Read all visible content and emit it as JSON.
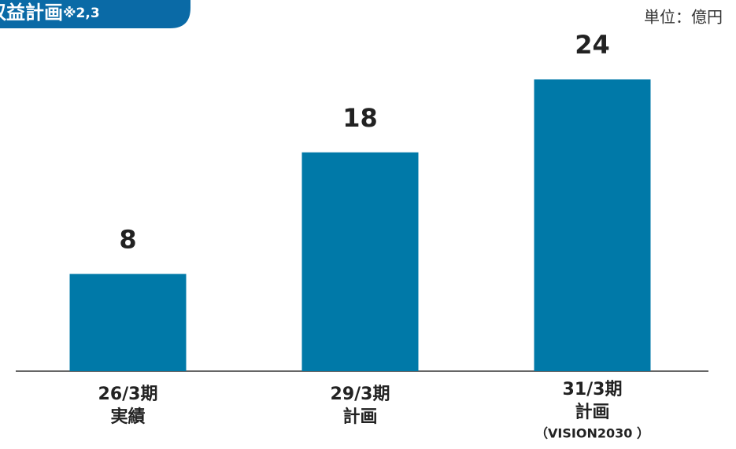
{
  "chart_data": {
    "type": "bar",
    "title": "収益計画",
    "title_note": "※2,3",
    "unit": "単位：億円",
    "categories": [
      [
        "26/3期",
        "実績"
      ],
      [
        "29/3期",
        "計画"
      ],
      [
        "31/3期",
        "計画",
        "（VISION2030 ）"
      ]
    ],
    "values": [
      8,
      18,
      24
    ],
    "color": "#0079a8",
    "ylim": [
      0,
      24
    ]
  }
}
